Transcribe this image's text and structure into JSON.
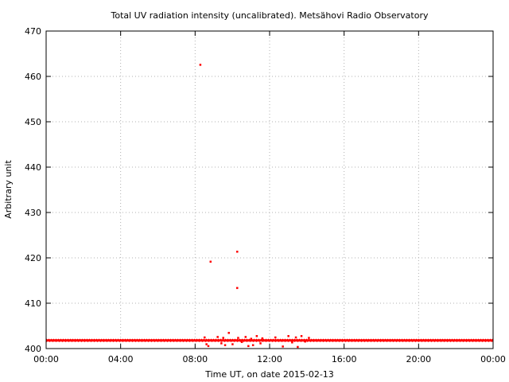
{
  "chart_data": {
    "type": "scatter",
    "title": "Total UV radiation intensity (uncalibrated). Metsähovi Radio Observatory",
    "xlabel": "Time UT, on date 2015-02-13",
    "ylabel": "Arbitrary unit",
    "xlim": [
      0,
      24
    ],
    "ylim": [
      400,
      470
    ],
    "x_ticks": [
      0,
      4,
      8,
      12,
      16,
      20,
      24
    ],
    "x_tick_labels": [
      "00:00",
      "04:00",
      "08:00",
      "12:00",
      "16:00",
      "20:00",
      "00:00"
    ],
    "y_ticks": [
      400,
      410,
      420,
      430,
      440,
      450,
      460,
      470
    ],
    "y_tick_labels": [
      "400",
      "410",
      "420",
      "430",
      "440",
      "450",
      "460",
      "470"
    ],
    "grid": true,
    "marker_color": "#ff0000",
    "baseline": {
      "value": 401.8,
      "x_range": [
        0,
        24
      ]
    },
    "series": [
      {
        "name": "",
        "points": [
          {
            "x": 8.27,
            "y": 462.6
          },
          {
            "x": 8.82,
            "y": 419.2
          },
          {
            "x": 10.25,
            "y": 421.4
          },
          {
            "x": 10.25,
            "y": 413.4
          },
          {
            "x": 8.5,
            "y": 402.5
          },
          {
            "x": 8.6,
            "y": 401.0
          },
          {
            "x": 8.7,
            "y": 400.6
          },
          {
            "x": 9.2,
            "y": 402.6
          },
          {
            "x": 9.4,
            "y": 401.2
          },
          {
            "x": 9.5,
            "y": 402.4
          },
          {
            "x": 9.6,
            "y": 400.8
          },
          {
            "x": 9.8,
            "y": 403.5
          },
          {
            "x": 10.0,
            "y": 401.0
          },
          {
            "x": 10.3,
            "y": 402.4
          },
          {
            "x": 10.5,
            "y": 401.5
          },
          {
            "x": 10.7,
            "y": 402.6
          },
          {
            "x": 10.85,
            "y": 400.6
          },
          {
            "x": 11.0,
            "y": 402.2
          },
          {
            "x": 11.1,
            "y": 400.8
          },
          {
            "x": 11.3,
            "y": 402.8
          },
          {
            "x": 11.5,
            "y": 401.2
          },
          {
            "x": 11.6,
            "y": 402.3
          },
          {
            "x": 12.3,
            "y": 402.5
          },
          {
            "x": 12.7,
            "y": 400.5
          },
          {
            "x": 13.0,
            "y": 402.8
          },
          {
            "x": 13.2,
            "y": 401.4
          },
          {
            "x": 13.4,
            "y": 402.5
          },
          {
            "x": 13.5,
            "y": 400.4
          },
          {
            "x": 13.7,
            "y": 402.8
          },
          {
            "x": 13.9,
            "y": 401.6
          },
          {
            "x": 14.1,
            "y": 402.4
          }
        ]
      }
    ]
  }
}
